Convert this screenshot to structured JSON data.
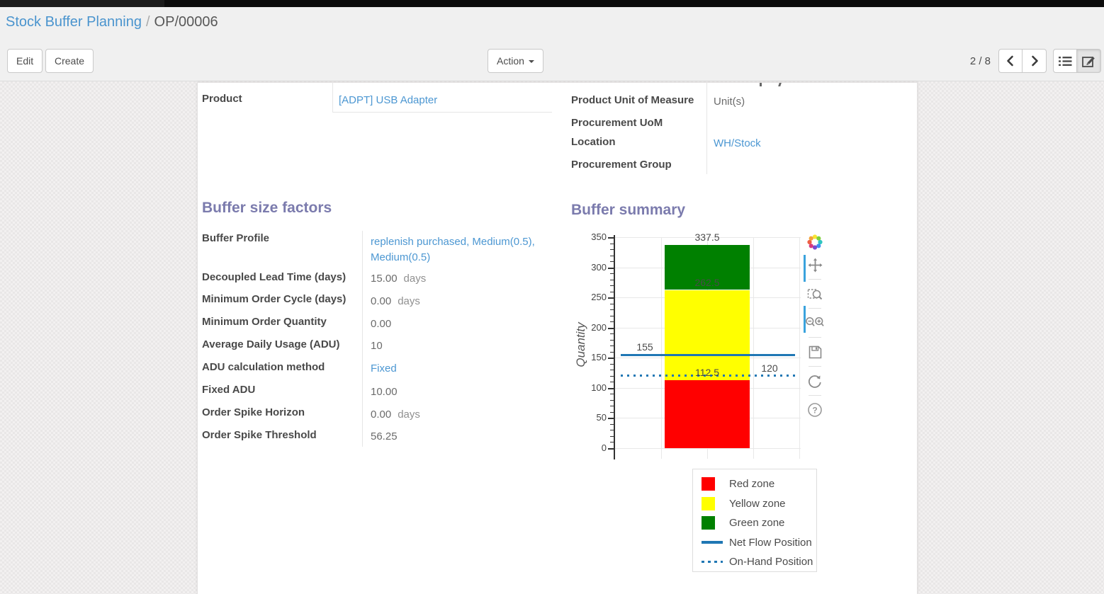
{
  "breadcrumb": {
    "section": "Stock Buffer Planning",
    "separator": "/",
    "record": "OP/00006"
  },
  "toolbar": {
    "edit": "Edit",
    "create": "Create",
    "action": "Action",
    "pager": "2 / 8"
  },
  "pager_nav": {
    "icons": [
      "previous-arrow",
      "next-arrow"
    ]
  },
  "view_switcher": {
    "icons": [
      "list-view",
      "form-view"
    ],
    "active": "form-view"
  },
  "sheet": {
    "product": {
      "label": "Product",
      "value": "[ADPT] USB Adapter"
    },
    "right_fields": [
      {
        "label": "Product Unit of Measure",
        "value": "Unit(s)"
      },
      {
        "label": "Procurement UoM",
        "value": ""
      },
      {
        "label": "Location",
        "value": "WH/Stock"
      },
      {
        "label": "Procurement Group",
        "value": ""
      }
    ],
    "factors_title": "Buffer size factors",
    "factors": [
      {
        "label": "Buffer Profile",
        "value": "replenish purchased, Medium(0.5), Medium(0.5)",
        "suffix": ""
      },
      {
        "label": "Decoupled Lead Time (days)",
        "value": "15.00",
        "suffix": "days"
      },
      {
        "label": "Minimum Order Cycle (days)",
        "value": "0.00",
        "suffix": "days"
      },
      {
        "label": "Minimum Order Quantity",
        "value": "0.00",
        "suffix": ""
      },
      {
        "label": "Average Daily Usage (ADU)",
        "value": "10",
        "suffix": ""
      },
      {
        "label": "ADU calculation method",
        "value": "Fixed",
        "suffix": ""
      },
      {
        "label": "Fixed ADU",
        "value": "10.00",
        "suffix": ""
      },
      {
        "label": "Order Spike Horizon",
        "value": "0.00",
        "suffix": "days"
      },
      {
        "label": "Order Spike Threshold",
        "value": "56.25",
        "suffix": ""
      }
    ],
    "summary_title": "Buffer summary"
  },
  "chart_data": {
    "type": "bar",
    "title": "Buffer summary",
    "ylabel": "Quantity",
    "xlabel": "",
    "ylim": [
      0,
      350
    ],
    "yticks": [
      0,
      50,
      100,
      150,
      200,
      250,
      300,
      350
    ],
    "grid": true,
    "categories": [
      ""
    ],
    "series": [
      {
        "name": "Red zone",
        "color": "#ff0000",
        "from": 0,
        "to": 112.5,
        "height": 112.5
      },
      {
        "name": "Yellow zone",
        "color": "#ffff00",
        "from": 112.5,
        "to": 262.5,
        "height": 150
      },
      {
        "name": "Green zone",
        "color": "#008000",
        "from": 262.5,
        "to": 337.5,
        "height": 75
      }
    ],
    "lines": [
      {
        "name": "Net Flow Position",
        "value": 155,
        "style": "solid",
        "color": "#1f77b4"
      },
      {
        "name": "On-Hand Position",
        "value": 120,
        "style": "dotted",
        "color": "#1f77b4"
      }
    ],
    "annotations": [
      {
        "text": "337.5",
        "value": 337.5,
        "anchor": "bar"
      },
      {
        "text": "262.5",
        "value": 262.5,
        "anchor": "bar"
      },
      {
        "text": "112.5",
        "value": 112.5,
        "anchor": "bar"
      },
      {
        "text": "155",
        "value": 155,
        "anchor": "line-left"
      },
      {
        "text": "120",
        "value": 120,
        "anchor": "line-right"
      }
    ],
    "legend": {
      "position": "bottom-right",
      "items": [
        "Red zone",
        "Yellow zone",
        "Green zone",
        "Net Flow Position",
        "On-Hand Position"
      ]
    }
  },
  "modebar": {
    "icons": [
      "plotly-logo",
      "pan",
      "zoom-box",
      "zoom-in-out",
      "save",
      "reset-axes",
      "help"
    ]
  }
}
